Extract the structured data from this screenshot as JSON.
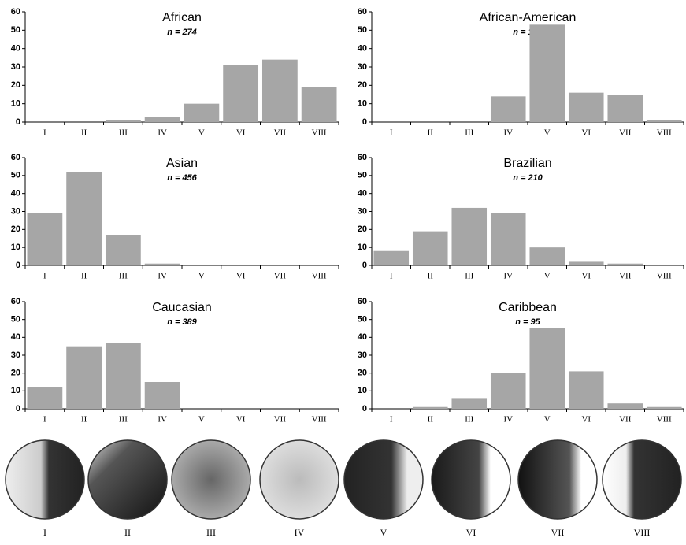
{
  "chart_data": [
    {
      "type": "bar",
      "title": "African",
      "subtitle": "n = 274",
      "categories": [
        "I",
        "II",
        "III",
        "IV",
        "V",
        "VI",
        "VII",
        "VIII"
      ],
      "values": [
        0,
        0,
        1,
        3,
        10,
        31,
        34,
        19
      ],
      "color": "#a6a6a6",
      "ylim": [
        0,
        60
      ],
      "yticks": [
        0,
        10,
        20,
        30,
        40,
        50,
        60
      ]
    },
    {
      "type": "bar",
      "title": "African-American",
      "subtitle": "n = 100",
      "categories": [
        "I",
        "II",
        "III",
        "IV",
        "V",
        "VI",
        "VII",
        "VIII"
      ],
      "values": [
        0,
        0,
        0,
        14,
        53,
        16,
        15,
        1
      ],
      "color": "#a6a6a6",
      "ylim": [
        0,
        60
      ],
      "yticks": [
        0,
        10,
        20,
        30,
        40,
        50,
        60
      ]
    },
    {
      "type": "bar",
      "title": "Asian",
      "subtitle": "n = 456",
      "categories": [
        "I",
        "II",
        "III",
        "IV",
        "V",
        "VI",
        "VII",
        "VIII"
      ],
      "values": [
        29,
        52,
        17,
        1,
        0,
        0,
        0,
        0
      ],
      "color": "#a6a6a6",
      "ylim": [
        0,
        60
      ],
      "yticks": [
        0,
        10,
        20,
        30,
        40,
        50,
        60
      ]
    },
    {
      "type": "bar",
      "title": "Brazilian",
      "subtitle": "n = 210",
      "categories": [
        "I",
        "II",
        "III",
        "IV",
        "V",
        "VI",
        "VII",
        "VIII"
      ],
      "values": [
        8,
        19,
        32,
        29,
        10,
        2,
        1,
        0
      ],
      "color": "#a6a6a6",
      "ylim": [
        0,
        60
      ],
      "yticks": [
        0,
        10,
        20,
        30,
        40,
        50,
        60
      ]
    },
    {
      "type": "bar",
      "title": "Caucasian",
      "subtitle": "n = 389",
      "categories": [
        "I",
        "II",
        "III",
        "IV",
        "V",
        "VI",
        "VII",
        "VIII"
      ],
      "values": [
        12,
        35,
        37,
        15,
        0,
        0,
        0,
        0
      ],
      "color": "#a6a6a6",
      "ylim": [
        0,
        60
      ],
      "yticks": [
        0,
        10,
        20,
        30,
        40,
        50,
        60
      ]
    },
    {
      "type": "bar",
      "title": "Caribbean",
      "subtitle": "n = 95",
      "categories": [
        "I",
        "II",
        "III",
        "IV",
        "V",
        "VI",
        "VII",
        "VIII"
      ],
      "values": [
        0,
        1,
        6,
        20,
        45,
        21,
        3,
        1
      ],
      "color": "#a6a6a6",
      "ylim": [
        0,
        60
      ],
      "yticks": [
        0,
        10,
        20,
        30,
        40,
        50,
        60
      ]
    }
  ],
  "hair_types": {
    "labels": [
      "I",
      "II",
      "III",
      "IV",
      "V",
      "VI",
      "VII",
      "VIII"
    ]
  }
}
